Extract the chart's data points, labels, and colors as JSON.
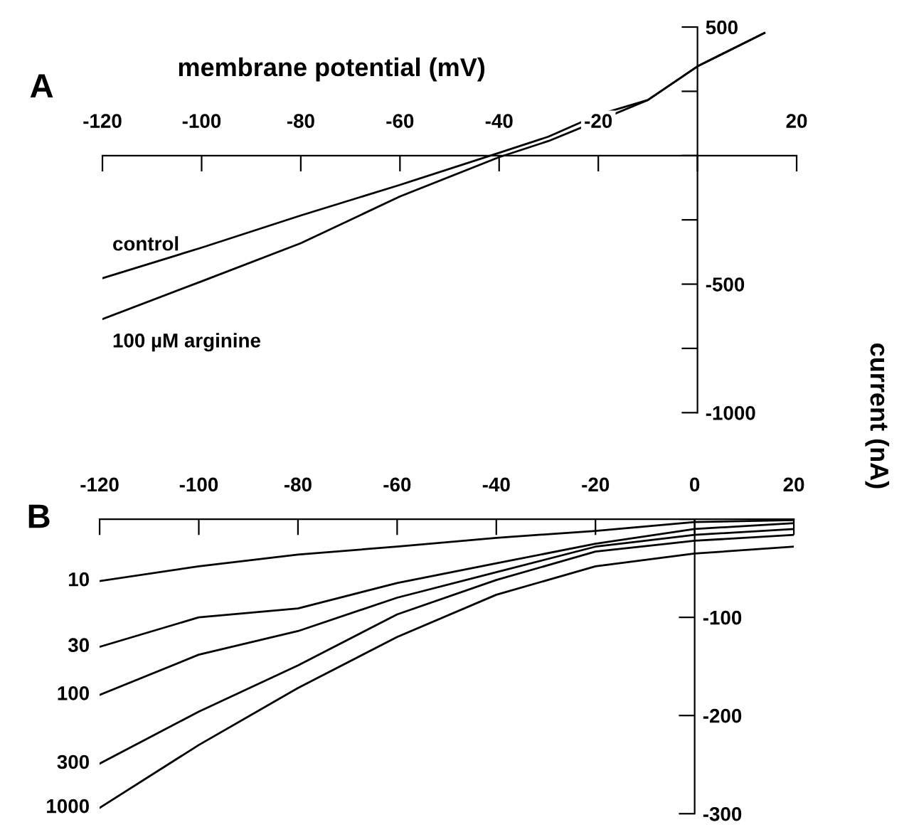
{
  "chart_data": [
    {
      "type": "line",
      "title": "A",
      "xlabel": "membrane potential (mV)",
      "ylabel": "current (nA)",
      "x": [
        -120,
        -100,
        -80,
        -60,
        -40,
        -30,
        -20,
        -10,
        0,
        13.5
      ],
      "series": [
        {
          "name": "control",
          "color": "#000000",
          "values": [
            -477,
            -358,
            -233,
            -114,
            11,
            74,
            159,
            216,
            347,
            477
          ]
        },
        {
          "name": "100 µM arginine",
          "color": "#000000",
          "values": [
            -636,
            -489,
            -341,
            -159,
            -6,
            57,
            136,
            216,
            347,
            477
          ]
        }
      ],
      "xlim": [
        -120,
        20
      ],
      "ylim": [
        -1000,
        500
      ],
      "xticks": [
        -120,
        -100,
        -80,
        -60,
        -40,
        -20,
        {
          "value": 0,
          "label": null
        },
        20
      ],
      "yticks": [
        500,
        {
          "value": 250,
          "label": null
        },
        {
          "value": 0,
          "label": null
        },
        {
          "value": -250,
          "label": null
        },
        -500,
        {
          "value": -750,
          "label": null
        },
        -1000
      ],
      "grid": false,
      "legend": false
    },
    {
      "type": "line",
      "title": "B",
      "x": [
        -120,
        -100,
        -80,
        -60,
        -40,
        -20,
        0,
        20
      ],
      "series": [
        {
          "name": "10",
          "color": "#000000",
          "values": [
            -63,
            -48,
            -36,
            -28,
            -19,
            -12,
            -3,
            -1
          ]
        },
        {
          "name": "30",
          "color": "#000000",
          "values": [
            -130,
            -100,
            -91,
            -65,
            -45,
            -25,
            -10,
            -4
          ]
        },
        {
          "name": "100",
          "color": "#000000",
          "values": [
            -179,
            -138,
            -114,
            -80,
            -54,
            -28,
            -16,
            -10
          ]
        },
        {
          "name": "300",
          "color": "#000000",
          "values": [
            -249,
            -196,
            -149,
            -97,
            -62,
            -33,
            -22,
            -16
          ]
        },
        {
          "name": "1000",
          "color": "#000000",
          "values": [
            -294,
            -230,
            -172,
            -120,
            -77,
            -48,
            -35,
            -28
          ]
        }
      ],
      "xlim": [
        -120,
        20
      ],
      "ylim": [
        -300,
        0
      ],
      "xticks": [
        -120,
        -100,
        -80,
        -60,
        -40,
        -20,
        0,
        20
      ],
      "yticks": [
        {
          "value": 0,
          "label": null
        },
        -100,
        -200,
        -300
      ],
      "grid": false,
      "legend": false
    }
  ]
}
